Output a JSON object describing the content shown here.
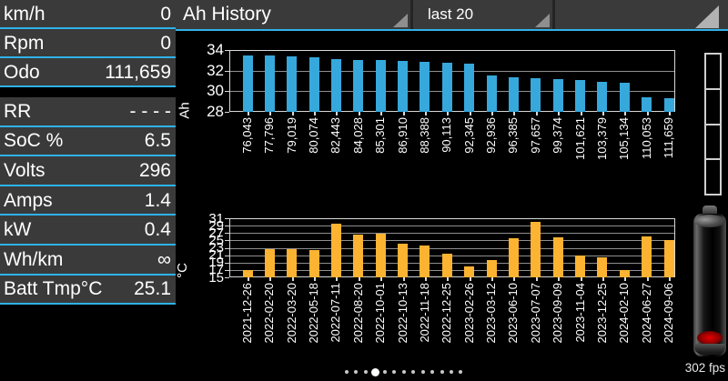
{
  "header": {
    "title": "Ah History",
    "range": "last 20"
  },
  "sidebar": {
    "rows": [
      {
        "label": "km/h",
        "value": "0"
      },
      {
        "label": "Rpm",
        "value": "0"
      },
      {
        "label": "Odo",
        "value": "111,659"
      },
      {
        "label": "RR",
        "value": "- - - -"
      },
      {
        "label": "SoC %",
        "value": "6.5"
      },
      {
        "label": "Volts",
        "value": "296"
      },
      {
        "label": "Amps",
        "value": "1.4"
      },
      {
        "label": "kW",
        "value": "0.4"
      },
      {
        "label": "Wh/km",
        "value": "∞"
      },
      {
        "label": "Batt Tmp°C",
        "value": "25.1"
      }
    ]
  },
  "chart_data": [
    {
      "type": "bar",
      "title": "Ah History",
      "ylabel": "Ah",
      "xlabel": "",
      "ylim": [
        28,
        34
      ],
      "yticks": [
        34,
        32,
        30,
        28
      ],
      "bar_color": "#36a8dc",
      "categories": [
        "76,043",
        "77,796",
        "79,019",
        "80,074",
        "82,443",
        "84,028",
        "85,301",
        "86,910",
        "88,388",
        "90,113",
        "92,345",
        "92,936",
        "96,385",
        "97,657",
        "99,374",
        "101,621",
        "103,379",
        "105,134",
        "110,053",
        "111,659"
      ],
      "values": [
        33.5,
        33.45,
        33.4,
        33.3,
        33.15,
        33.05,
        33.0,
        32.95,
        32.85,
        32.8,
        32.7,
        31.5,
        31.35,
        31.25,
        31.2,
        31.1,
        30.9,
        30.85,
        29.45,
        29.3
      ]
    },
    {
      "type": "bar",
      "title": "",
      "ylabel": "°C",
      "xlabel": "",
      "ylim": [
        15,
        31
      ],
      "yticks": [
        31,
        29,
        27,
        25,
        23,
        21,
        19,
        17,
        15
      ],
      "bar_color": "#fcb331",
      "categories": [
        "2021-12-26",
        "2022-02-20",
        "2022-03-20",
        "2022-05-18",
        "2022-07-11",
        "2022-08-20",
        "2022-10-01",
        "2022-10-13",
        "2022-11-18",
        "2022-12-25",
        "2023-02-26",
        "2023-03-12",
        "2023-06-10",
        "2023-07-07",
        "2023-09-09",
        "2023-11-04",
        "2023-12-25",
        "2024-02-10",
        "2024-06-27",
        "2024-09-06"
      ],
      "values": [
        17.0,
        22.7,
        22.6,
        22.3,
        29.5,
        26.6,
        26.8,
        24.1,
        23.7,
        21.3,
        18.0,
        19.6,
        25.6,
        30.0,
        25.9,
        21.0,
        20.4,
        16.9,
        26.0,
        25.1
      ]
    }
  ],
  "footer": {
    "fps": "302 fps",
    "page_dots": {
      "count": 13,
      "active_index": 3
    }
  },
  "colors": {
    "accent_blue": "#2eb2e8",
    "bar_blue": "#36a8dc",
    "bar_orange": "#fcb331",
    "panel_gray": "#3a3a3a",
    "grid_gray": "#8f8f8f",
    "border_gray": "#d8d8d8"
  }
}
